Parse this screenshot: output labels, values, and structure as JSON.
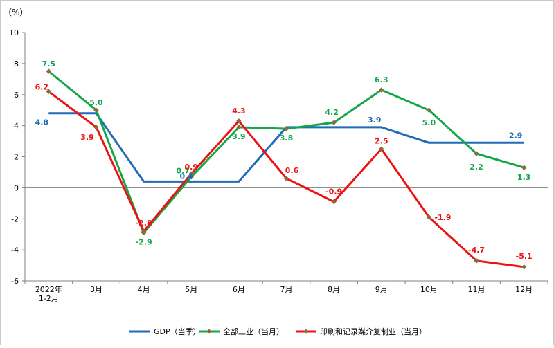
{
  "chart_data": {
    "type": "line",
    "unit": "（%）",
    "categories": [
      [
        "2022年",
        "1-2月"
      ],
      [
        "3月"
      ],
      [
        "4月"
      ],
      [
        "5月"
      ],
      [
        "6月"
      ],
      [
        "7月"
      ],
      [
        "8月"
      ],
      [
        "9月"
      ],
      [
        "10月"
      ],
      [
        "11月"
      ],
      [
        "12月"
      ]
    ],
    "ylim": [
      -6,
      10
    ],
    "yticks": [
      -6,
      -4,
      -2,
      0,
      2,
      4,
      6,
      8,
      10
    ],
    "grid": false,
    "legend_position": "bottom",
    "series": [
      {
        "name": "GDP（当季）",
        "color": "#1f6bb8",
        "style": "step",
        "values": [
          4.8,
          4.8,
          0.4,
          0.4,
          0.4,
          3.9,
          3.9,
          3.9,
          2.9,
          2.9,
          2.9
        ],
        "labels": [
          {
            "i": 0,
            "text": "4.8"
          },
          {
            "i": 3,
            "text": "0.4"
          },
          {
            "i": 7,
            "text": "3.9"
          },
          {
            "i": 10,
            "text": "2.9"
          }
        ]
      },
      {
        "name": "全部工业（当月）",
        "color": "#12a84a",
        "style": "line",
        "values": [
          7.5,
          5.0,
          -2.9,
          0.7,
          3.9,
          3.8,
          4.2,
          6.3,
          5.0,
          2.2,
          1.3
        ],
        "labels": [
          {
            "i": 0,
            "text": "7.5"
          },
          {
            "i": 1,
            "text": "5.0"
          },
          {
            "i": 2,
            "text": "-2.9"
          },
          {
            "i": 3,
            "text": "0.7"
          },
          {
            "i": 4,
            "text": "3.9"
          },
          {
            "i": 5,
            "text": "3.8"
          },
          {
            "i": 6,
            "text": "4.2"
          },
          {
            "i": 7,
            "text": "6.3"
          },
          {
            "i": 8,
            "text": "5.0"
          },
          {
            "i": 9,
            "text": "2.2"
          },
          {
            "i": 10,
            "text": "1.3"
          }
        ]
      },
      {
        "name": "印刷和记录媒介复制业（当月）",
        "color": "#ee1111",
        "style": "line",
        "values": [
          6.2,
          3.9,
          -2.8,
          0.9,
          4.3,
          0.6,
          -0.9,
          2.5,
          -1.9,
          -4.7,
          -5.1
        ],
        "labels": [
          {
            "i": 0,
            "text": "6.2"
          },
          {
            "i": 1,
            "text": "3.9"
          },
          {
            "i": 2,
            "text": "-2.8"
          },
          {
            "i": 3,
            "text": "0.9"
          },
          {
            "i": 4,
            "text": "4.3"
          },
          {
            "i": 5,
            "text": "0.6"
          },
          {
            "i": 6,
            "text": "-0.9"
          },
          {
            "i": 7,
            "text": "2.5"
          },
          {
            "i": 8,
            "text": "-1.9"
          },
          {
            "i": 9,
            "text": "-4.7"
          },
          {
            "i": 10,
            "text": "-5.1"
          }
        ]
      }
    ]
  }
}
